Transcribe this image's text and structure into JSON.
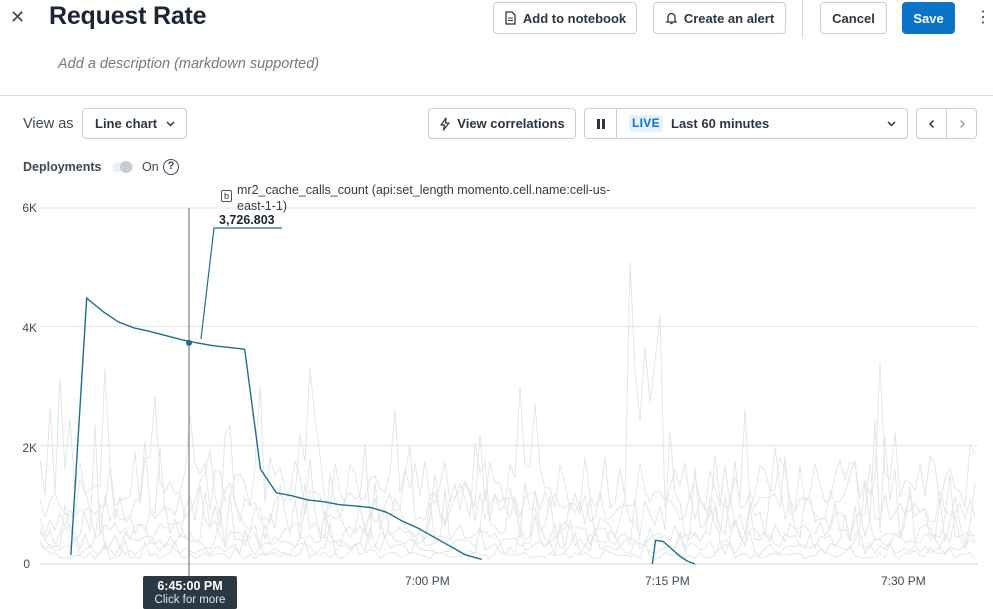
{
  "header": {
    "close_icon": "close-icon",
    "title": "Request Rate",
    "description_placeholder": "Add a description (markdown supported)",
    "add_to_notebook": "Add to notebook",
    "create_alert": "Create an alert",
    "cancel": "Cancel",
    "save": "Save",
    "accent_color": "#0c74c6"
  },
  "toolbar": {
    "view_as_label": "View as",
    "chart_type_value": "Line chart",
    "view_correlations": "View correlations",
    "live_badge": "LIVE",
    "time_range": "Last 60 minutes"
  },
  "deployments": {
    "label": "Deployments",
    "toggle_label": "On"
  },
  "tooltip": {
    "series_tag": "b",
    "series_name": "mr2_cache_calls_count (api:set_length momento.cell.name:cell-us-east-1-1)",
    "value": "3,726.803"
  },
  "cursor": {
    "time": "6:45:00 PM",
    "hint": "Click for more"
  },
  "chart_data": {
    "type": "line",
    "title": "Request Rate",
    "x_tick_labels": [
      "6:45 PM",
      "7:00 PM",
      "7:15 PM",
      "7:30 PM"
    ],
    "y_tick_labels": [
      "0",
      "2K",
      "4K",
      "6K"
    ],
    "ylim": [
      0,
      6000
    ],
    "grid": true,
    "highlight_color": "#1f6f87",
    "background_series_color": "#e3e6e9",
    "series": [
      {
        "name": "mr2_cache_calls_count (api:set_length momento.cell.name:cell-us-east-1-1)",
        "x_minutes_from_630": [
          7.4,
          8.4,
          9.4,
          10.4,
          11.4,
          12.4,
          13.4,
          14.4,
          15.4,
          16.4,
          17.4,
          18.4,
          19.4,
          20.4,
          21.4,
          22.4,
          23.4,
          24.4,
          25.4,
          26.4,
          27.4,
          28.4,
          29.4,
          30.4,
          31.4,
          32.4,
          33.4
        ],
        "values": [
          150,
          4480,
          4260,
          4080,
          3980,
          3920,
          3850,
          3780,
          3727,
          3680,
          3650,
          3620,
          1600,
          1200,
          1150,
          1080,
          1050,
          1000,
          980,
          950,
          870,
          720,
          600,
          450,
          300,
          150,
          80
        ]
      },
      {
        "name": "",
        "x_minutes_from_630": [
          44.2,
          44.4,
          44.9,
          45.4,
          45.9,
          46.4,
          46.9
        ],
        "values": [
          0,
          400,
          380,
          260,
          140,
          50,
          0
        ]
      }
    ],
    "hover_point": {
      "time": "6:45:00 PM",
      "value": 3726.803
    }
  }
}
